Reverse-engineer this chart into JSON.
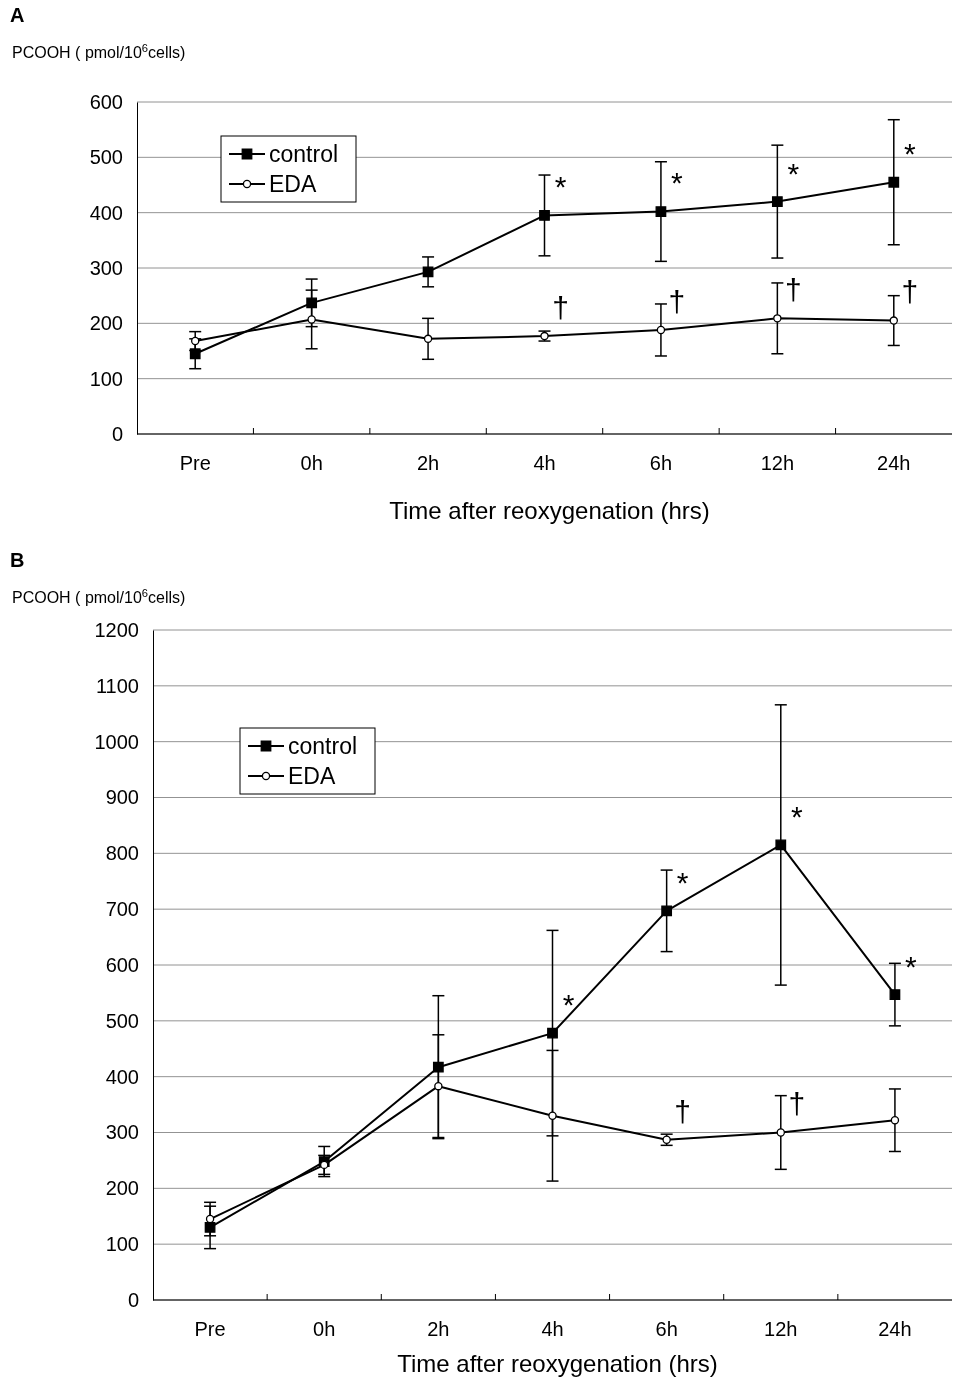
{
  "chart_data": [
    {
      "type": "line",
      "title": "A",
      "ylabel": "PCOOH ( pmol/10$^{6}$cells)",
      "xlabel": "Time after reoxygenation (hrs)",
      "categories": [
        "Pre",
        "0h",
        "2h",
        "4h",
        "6h",
        "12h",
        "24h"
      ],
      "ylim": [
        0,
        600
      ],
      "yticks": [
        0,
        100,
        200,
        300,
        400,
        500,
        600
      ],
      "grid": "y",
      "legend": "top left",
      "line_style": "solid",
      "series": [
        {
          "name": "control",
          "color": "#000000",
          "marker": "square",
          "values": [
            145,
            237,
            293,
            395,
            402,
            420,
            455
          ],
          "errors": [
            27,
            43,
            27,
            73,
            90,
            102,
            113
          ]
        },
        {
          "name": "EDA",
          "color": "#000000",
          "marker": "circle",
          "values": [
            168,
            207,
            172,
            177,
            188,
            209,
            205
          ],
          "errors": [
            17,
            53,
            37,
            9,
            47,
            64,
            45
          ]
        }
      ],
      "annotations": [
        {
          "text": "*",
          "x": "4h",
          "y": 395
        },
        {
          "text": "*",
          "x": "6h",
          "y": 402
        },
        {
          "text": "*",
          "x": "12h",
          "y": 420
        },
        {
          "text": "*",
          "x": "24h",
          "y": 455
        },
        {
          "text": "†",
          "x": "4h",
          "y": 177
        },
        {
          "text": "†",
          "x": "6h",
          "y": 188
        },
        {
          "text": "†",
          "x": "12h",
          "y": 209
        },
        {
          "text": "†",
          "x": "24h",
          "y": 205
        }
      ]
    },
    {
      "type": "line",
      "title": "B",
      "ylabel": "PCOOH ( pmol/10$^{6}$cells)",
      "xlabel": "Time after reoxygenation (hrs)",
      "categories": [
        "Pre",
        "0h",
        "2h",
        "4h",
        "6h",
        "12h",
        "24h"
      ],
      "ylim": [
        0,
        1200
      ],
      "yticks": [
        0,
        100,
        200,
        300,
        400,
        500,
        600,
        700,
        800,
        900,
        1000,
        1100,
        1200
      ],
      "grid": "y",
      "legend": "top left",
      "line_style": "solid",
      "series": [
        {
          "name": "control",
          "color": "#000000",
          "marker": "square",
          "values": [
            130,
            248,
            417,
            478,
            697,
            815,
            547
          ],
          "errors": [
            38,
            27,
            128,
            184,
            73,
            251,
            56
          ]
        },
        {
          "name": "EDA",
          "color": "#000000",
          "marker": "circle",
          "values": [
            145,
            242,
            383,
            330,
            287,
            300,
            322
          ],
          "errors": [
            30,
            17,
            92,
            117,
            10,
            66,
            56
          ]
        }
      ],
      "annotations": [
        {
          "text": "*",
          "x": "4h",
          "y": 478
        },
        {
          "text": "*",
          "x": "6h",
          "y": 697
        },
        {
          "text": "*",
          "x": "12h",
          "y": 815
        },
        {
          "text": "*",
          "x": "24h",
          "y": 547
        },
        {
          "text": "†",
          "x": "6h",
          "y": 287
        },
        {
          "text": "†",
          "x": "12h",
          "y": 300
        }
      ]
    }
  ]
}
